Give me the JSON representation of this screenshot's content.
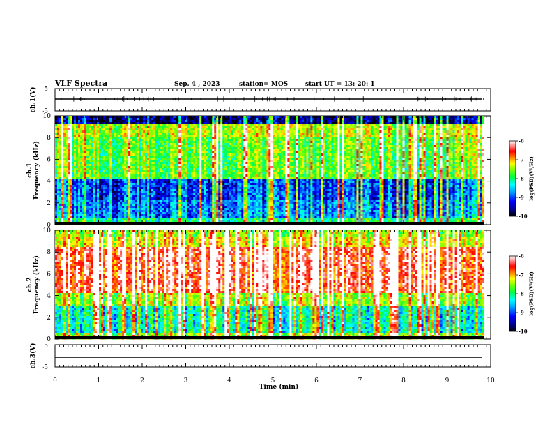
{
  "header": {
    "title": "VLF Spectra",
    "date": "Sep. 4 , 2023",
    "station": "station= MOS",
    "start": "start  UT  =   13: 20: 1"
  },
  "chart_data": [
    {
      "type": "line",
      "panel": "ch1-waveform",
      "ylabel": "ch.1(V)",
      "ylim": [
        -5,
        5
      ],
      "yticks": [
        "5",
        "-5"
      ],
      "series": [
        {
          "values_description_free": true,
          "level": 0
        }
      ],
      "xlim": [
        0,
        10
      ]
    },
    {
      "type": "heatmap",
      "panel": "ch1-spectrogram",
      "ylabel": "ch.1\nFrequency (kHz)",
      "ylabel_lines": [
        "ch.1",
        "Frequency (kHz)"
      ],
      "ylim": [
        0,
        10
      ],
      "yticks": [
        "0",
        "2",
        "4",
        "6",
        "8",
        "10"
      ],
      "xlim": [
        0,
        9.85
      ],
      "colorbar": {
        "label": "log(PSD)(V²/Hz)",
        "ticks": [
          "-6",
          "-7",
          "-8",
          "-9",
          "-10"
        ],
        "range": [
          -10,
          -6
        ]
      }
    },
    {
      "type": "heatmap",
      "panel": "ch2-spectrogram",
      "ylabel_lines": [
        "ch.2",
        "Frequency (kHz)"
      ],
      "ylim": [
        0,
        10
      ],
      "yticks": [
        "0",
        "2",
        "4",
        "6",
        "8",
        "10"
      ],
      "xlim": [
        0,
        9.85
      ],
      "colorbar": {
        "label": "log(PSD)(V²/Hz)",
        "ticks": [
          "-6",
          "-7",
          "-8",
          "-9",
          "-10"
        ],
        "range": [
          -10,
          -6
        ]
      }
    },
    {
      "type": "line",
      "panel": "ch3-waveform",
      "ylabel": "ch.3(V)",
      "ylim": [
        -5,
        5
      ],
      "yticks": [
        "5",
        "-5"
      ],
      "series": [
        {
          "level": 0
        }
      ],
      "xlim": [
        0,
        10
      ]
    }
  ],
  "xaxis": {
    "label": "Time (min)",
    "ticks": [
      "0",
      "1",
      "2",
      "3",
      "4",
      "5",
      "6",
      "7",
      "8",
      "9",
      "10"
    ],
    "xlim": [
      0,
      10
    ]
  },
  "colors": {
    "scale": [
      "#000080",
      "#0000ff",
      "#00a0ff",
      "#00ffff",
      "#00ff80",
      "#80ff00",
      "#ffff00",
      "#ff8000",
      "#ff0000",
      "#ffffff"
    ]
  }
}
